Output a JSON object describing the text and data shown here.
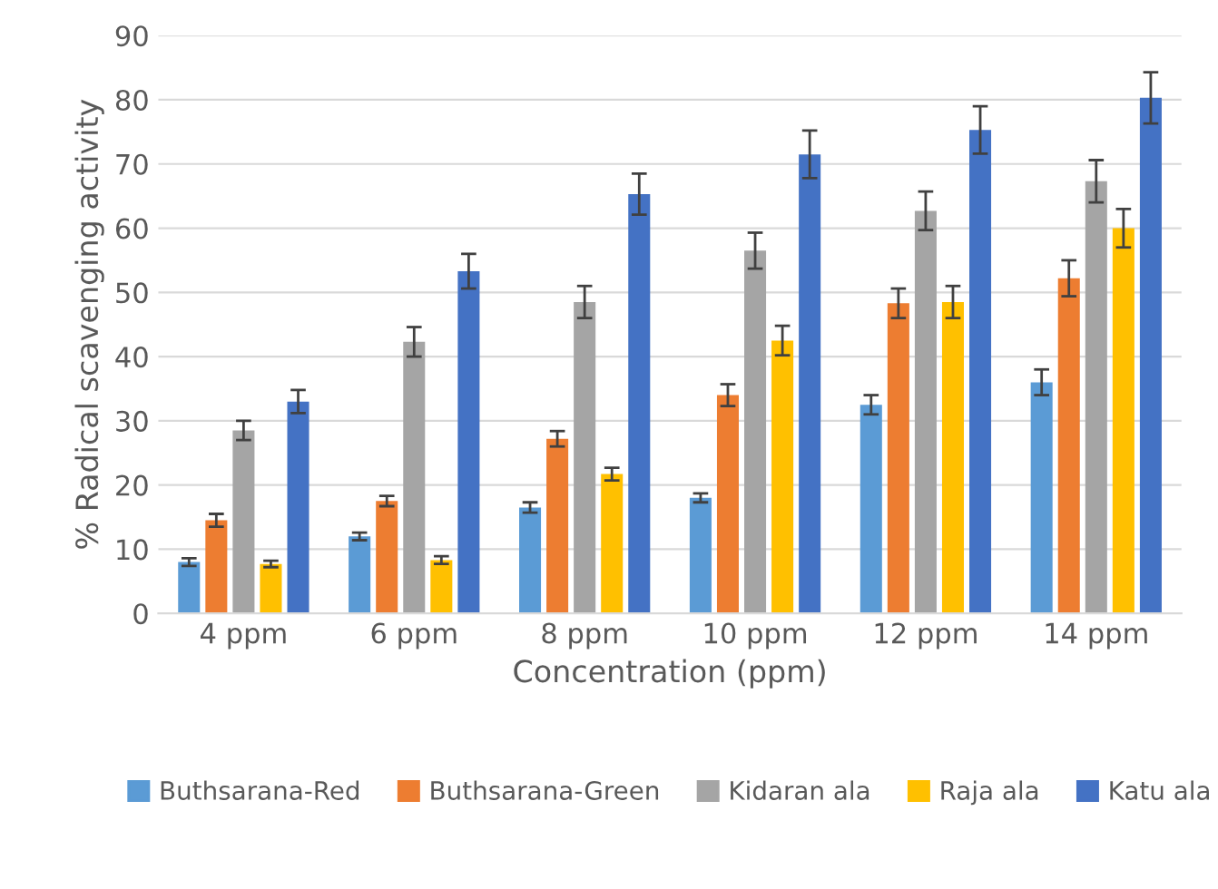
{
  "chart_data": {
    "type": "bar",
    "xlabel": "Concentration (ppm)",
    "ylabel": "% Radical scavenging activity",
    "categories": [
      "4 ppm",
      "6 ppm",
      "8 ppm",
      "10 ppm",
      "12 ppm",
      "14 ppm"
    ],
    "series": [
      {
        "name": "Buthsarana-Red",
        "color": "#5b9bd5",
        "values": [
          8,
          12,
          16.5,
          18,
          32.5,
          36
        ],
        "errors": [
          0.6,
          0.6,
          0.8,
          0.7,
          1.5,
          2
        ]
      },
      {
        "name": "Buthsarana-Green",
        "color": "#ed7d31",
        "values": [
          14.5,
          17.5,
          27.2,
          34,
          48.3,
          52.2
        ],
        "errors": [
          1,
          0.8,
          1.2,
          1.7,
          2.3,
          2.8
        ]
      },
      {
        "name": "Kidaran ala",
        "color": "#a5a5a5",
        "values": [
          28.5,
          42.3,
          48.5,
          56.5,
          62.7,
          67.3
        ],
        "errors": [
          1.5,
          2.3,
          2.5,
          2.8,
          3,
          3.3
        ]
      },
      {
        "name": "Raja ala",
        "color": "#ffc000",
        "values": [
          7.7,
          8.3,
          21.7,
          42.5,
          48.5,
          60
        ],
        "errors": [
          0.5,
          0.6,
          1,
          2.3,
          2.5,
          3
        ]
      },
      {
        "name": "Katu ala",
        "color": "#4472c4",
        "values": [
          33,
          53.3,
          65.3,
          71.5,
          75.3,
          80.3
        ],
        "errors": [
          1.8,
          2.7,
          3.2,
          3.7,
          3.7,
          4
        ]
      }
    ],
    "ylim": [
      0,
      90
    ],
    "yticks": [
      0,
      10,
      20,
      30,
      40,
      50,
      60,
      70,
      80,
      90
    ],
    "grid": "y",
    "legend": "bottom"
  }
}
